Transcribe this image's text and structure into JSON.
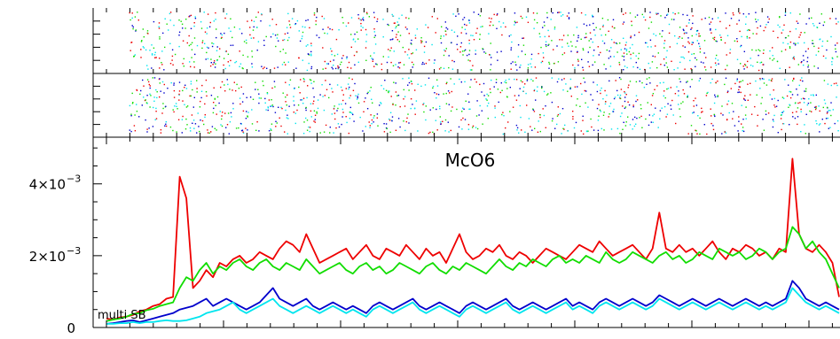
{
  "chart_data": {
    "type": "line",
    "title": "McO6",
    "annotation": "multi SB",
    "xlabel": "",
    "ylabel": "",
    "ylim": [
      0,
      0.0053
    ],
    "yticks": [
      {
        "value": 0,
        "mantissa": "0",
        "exponent": ""
      },
      {
        "value": 0.002,
        "mantissa": "2×10",
        "exponent": "−3"
      },
      {
        "value": 0.004,
        "mantissa": "4×10",
        "exponent": "−3"
      }
    ],
    "x_range": [
      0,
      1000
    ],
    "grid": false,
    "colors": {
      "red": "#ee0000",
      "green": "#11dd00",
      "blue": "#0000cc",
      "cyan": "#00e5ee",
      "axis": "#000000"
    },
    "series": [
      {
        "color_key": "red",
        "stroke_width": 1.8,
        "values": [
          0.00025,
          0.00022,
          0.00028,
          0.0003,
          0.00035,
          0.00045,
          0.0005,
          0.0006,
          0.00065,
          0.0008,
          0.00085,
          0.0042,
          0.0036,
          0.0011,
          0.0013,
          0.0016,
          0.0014,
          0.0018,
          0.0017,
          0.0019,
          0.002,
          0.0018,
          0.0019,
          0.0021,
          0.002,
          0.0019,
          0.0022,
          0.0024,
          0.0023,
          0.0021,
          0.0026,
          0.0022,
          0.0018,
          0.0019,
          0.002,
          0.0021,
          0.0022,
          0.0019,
          0.0021,
          0.0023,
          0.002,
          0.0019,
          0.0022,
          0.0021,
          0.002,
          0.0023,
          0.0021,
          0.0019,
          0.0022,
          0.002,
          0.0021,
          0.0018,
          0.0022,
          0.0026,
          0.0021,
          0.0019,
          0.002,
          0.0022,
          0.0021,
          0.0023,
          0.002,
          0.0019,
          0.0021,
          0.002,
          0.0018,
          0.002,
          0.0022,
          0.0021,
          0.002,
          0.0019,
          0.0021,
          0.0023,
          0.0022,
          0.0021,
          0.0024,
          0.0022,
          0.002,
          0.0021,
          0.0022,
          0.0023,
          0.0021,
          0.0019,
          0.0022,
          0.0032,
          0.0022,
          0.0021,
          0.0023,
          0.0021,
          0.0022,
          0.002,
          0.0022,
          0.0024,
          0.0021,
          0.0019,
          0.0022,
          0.0021,
          0.0023,
          0.0022,
          0.002,
          0.0021,
          0.0019,
          0.0022,
          0.0021,
          0.0047,
          0.0026,
          0.0022,
          0.0021,
          0.0023,
          0.0021,
          0.0018,
          0.00085
        ]
      },
      {
        "color_key": "green",
        "stroke_width": 1.8,
        "values": [
          0.00018,
          0.00022,
          0.00025,
          0.0003,
          0.00038,
          0.0004,
          0.00048,
          0.00052,
          0.0006,
          0.00065,
          0.0007,
          0.0011,
          0.0014,
          0.0013,
          0.0016,
          0.0018,
          0.0015,
          0.0017,
          0.0016,
          0.0018,
          0.0019,
          0.0017,
          0.0016,
          0.0018,
          0.0019,
          0.0017,
          0.0016,
          0.0018,
          0.0017,
          0.0016,
          0.0019,
          0.0017,
          0.0015,
          0.0016,
          0.0017,
          0.0018,
          0.0016,
          0.0015,
          0.0017,
          0.0018,
          0.0016,
          0.0017,
          0.0015,
          0.0016,
          0.0018,
          0.0017,
          0.0016,
          0.0015,
          0.0017,
          0.0018,
          0.0016,
          0.0015,
          0.0017,
          0.0016,
          0.0018,
          0.0017,
          0.0016,
          0.0015,
          0.0017,
          0.0019,
          0.0017,
          0.0016,
          0.0018,
          0.0017,
          0.0019,
          0.0018,
          0.0017,
          0.0019,
          0.002,
          0.0018,
          0.0019,
          0.0018,
          0.002,
          0.0019,
          0.0018,
          0.0021,
          0.0019,
          0.0018,
          0.0019,
          0.0021,
          0.002,
          0.0019,
          0.0018,
          0.002,
          0.0021,
          0.0019,
          0.002,
          0.0018,
          0.0019,
          0.0021,
          0.002,
          0.0019,
          0.0022,
          0.0021,
          0.002,
          0.0021,
          0.0019,
          0.002,
          0.0022,
          0.0021,
          0.0019,
          0.0021,
          0.0022,
          0.0028,
          0.0026,
          0.0022,
          0.0024,
          0.0021,
          0.0019,
          0.0015,
          0.0011
        ]
      },
      {
        "color_key": "blue",
        "stroke_width": 1.8,
        "values": [
          0.0001,
          0.00012,
          0.00015,
          0.00018,
          0.0002,
          0.00015,
          0.0002,
          0.00025,
          0.0003,
          0.00035,
          0.0004,
          0.0005,
          0.00055,
          0.0006,
          0.0007,
          0.0008,
          0.0006,
          0.0007,
          0.0008,
          0.0007,
          0.0006,
          0.0005,
          0.0006,
          0.0007,
          0.0009,
          0.0011,
          0.0008,
          0.0007,
          0.0006,
          0.0007,
          0.0008,
          0.0006,
          0.0005,
          0.0006,
          0.0007,
          0.0006,
          0.0005,
          0.0006,
          0.0005,
          0.0004,
          0.0006,
          0.0007,
          0.0006,
          0.0005,
          0.0006,
          0.0007,
          0.0008,
          0.0006,
          0.0005,
          0.0006,
          0.0007,
          0.0006,
          0.0005,
          0.0004,
          0.0006,
          0.0007,
          0.0006,
          0.0005,
          0.0006,
          0.0007,
          0.0008,
          0.0006,
          0.0005,
          0.0006,
          0.0007,
          0.0006,
          0.0005,
          0.0006,
          0.0007,
          0.0008,
          0.0006,
          0.0007,
          0.0006,
          0.0005,
          0.0007,
          0.0008,
          0.0007,
          0.0006,
          0.0007,
          0.0008,
          0.0007,
          0.0006,
          0.0007,
          0.0009,
          0.0008,
          0.0007,
          0.0006,
          0.0007,
          0.0008,
          0.0007,
          0.0006,
          0.0007,
          0.0008,
          0.0007,
          0.0006,
          0.0007,
          0.0008,
          0.0007,
          0.0006,
          0.0007,
          0.0006,
          0.0007,
          0.0008,
          0.0013,
          0.0011,
          0.0008,
          0.0007,
          0.0006,
          0.0007,
          0.0006,
          0.0005
        ]
      },
      {
        "color_key": "cyan",
        "stroke_width": 1.8,
        "values": [
          0.0001,
          0.0001,
          0.00012,
          0.00012,
          0.00015,
          0.00012,
          0.00015,
          0.00015,
          0.00018,
          0.0002,
          0.00018,
          0.00018,
          0.0002,
          0.00025,
          0.0003,
          0.0004,
          0.00045,
          0.0005,
          0.0006,
          0.0007,
          0.0005,
          0.0004,
          0.0005,
          0.0006,
          0.0007,
          0.0008,
          0.0006,
          0.0005,
          0.0004,
          0.0005,
          0.0006,
          0.0005,
          0.0004,
          0.0005,
          0.0006,
          0.0005,
          0.0004,
          0.0005,
          0.0004,
          0.0003,
          0.0005,
          0.0006,
          0.0005,
          0.0004,
          0.0005,
          0.0006,
          0.0007,
          0.0005,
          0.0004,
          0.0005,
          0.0006,
          0.0005,
          0.0004,
          0.0003,
          0.0005,
          0.0006,
          0.0005,
          0.0004,
          0.0005,
          0.0006,
          0.0007,
          0.0005,
          0.0004,
          0.0005,
          0.0006,
          0.0005,
          0.0004,
          0.0005,
          0.0006,
          0.0007,
          0.0005,
          0.0006,
          0.0005,
          0.0004,
          0.0006,
          0.0007,
          0.0006,
          0.0005,
          0.0006,
          0.0007,
          0.0006,
          0.0005,
          0.0006,
          0.0008,
          0.0007,
          0.0006,
          0.0005,
          0.0006,
          0.0007,
          0.0006,
          0.0005,
          0.0006,
          0.0007,
          0.0006,
          0.0005,
          0.0006,
          0.0007,
          0.0006,
          0.0005,
          0.0006,
          0.0005,
          0.0006,
          0.0007,
          0.0011,
          0.0009,
          0.0007,
          0.0006,
          0.0005,
          0.0006,
          0.0005,
          0.0004
        ]
      }
    ],
    "upper_panels": {
      "type": "scatter",
      "grid": false,
      "marker_colors": [
        "#ee0000",
        "#11dd00",
        "#0000cc",
        "#00e5ee"
      ]
    }
  }
}
